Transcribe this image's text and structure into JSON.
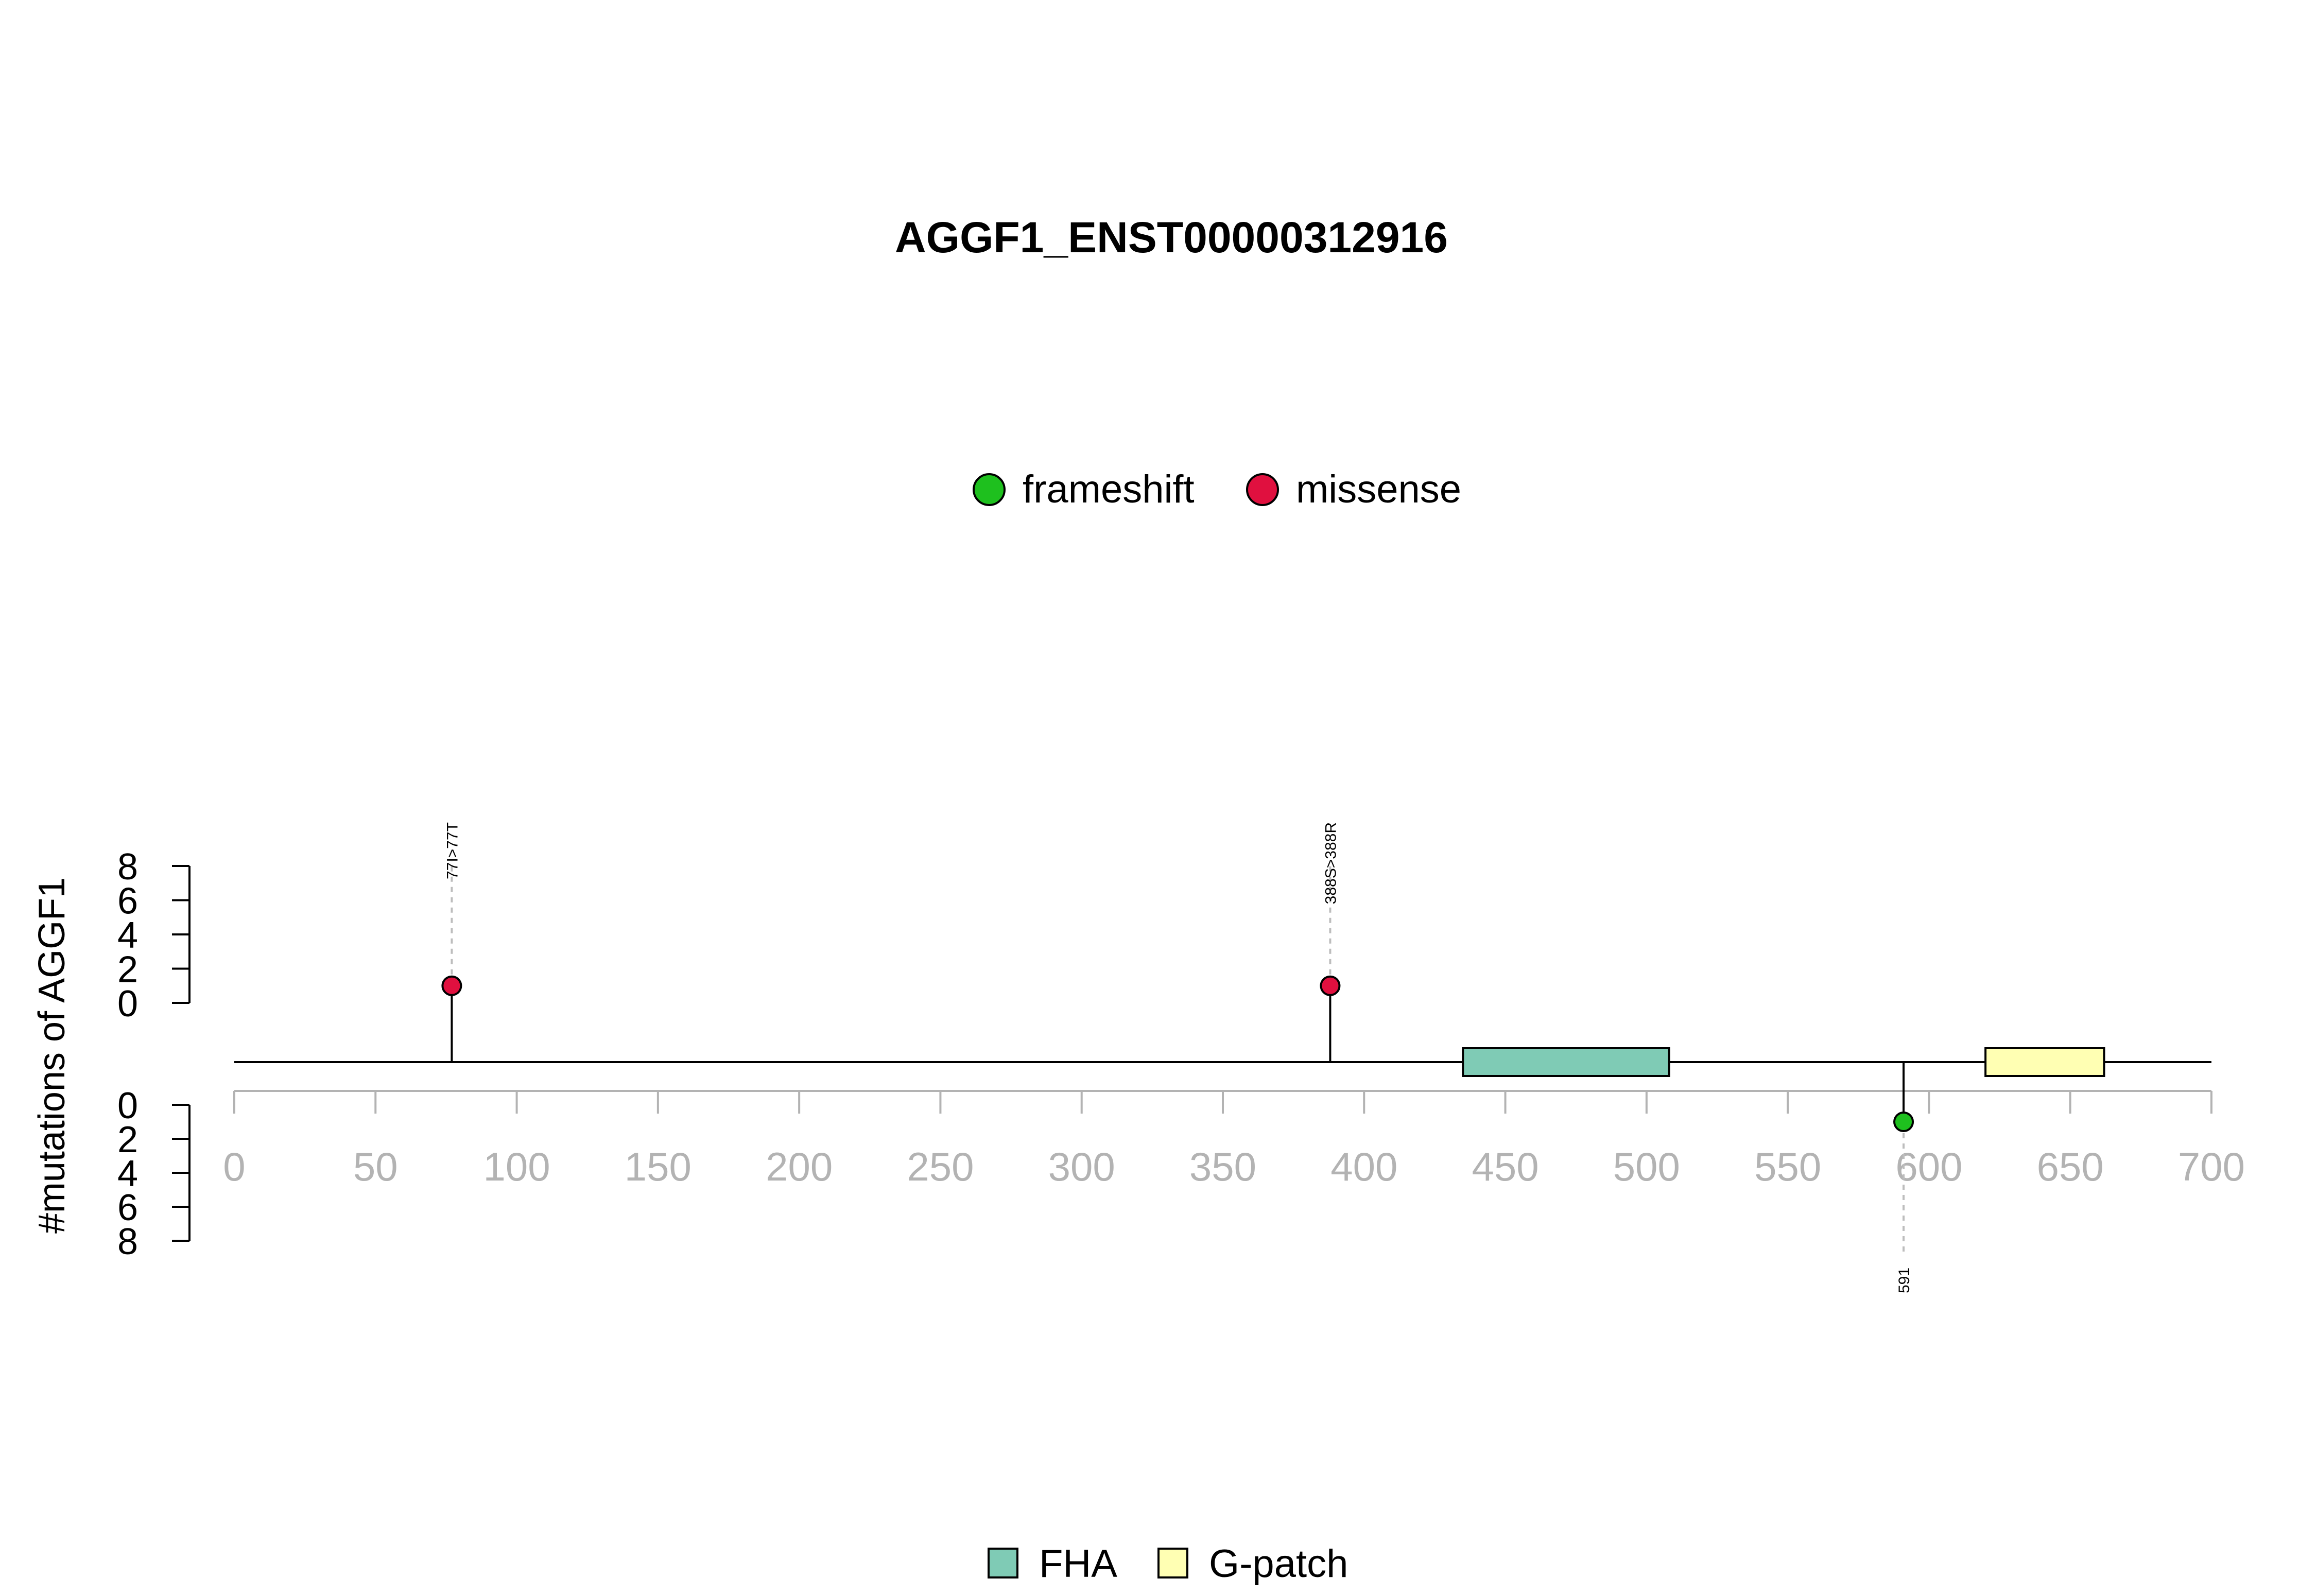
{
  "chart_data": {
    "type": "lollipop",
    "title": "AGGF1_ENST00000312916",
    "ylabel": "#mutations of AGGF1",
    "xlim": [
      0,
      700
    ],
    "x_ticks": [
      0,
      50,
      100,
      150,
      200,
      250,
      300,
      350,
      400,
      450,
      500,
      550,
      600,
      650,
      700
    ],
    "x_tick_labels": [
      "0",
      "50",
      "100",
      "150",
      "200",
      "250",
      "300",
      "350",
      "400",
      "450",
      "500",
      "550",
      "600",
      "650",
      "700"
    ],
    "ylim": [
      0,
      8
    ],
    "y_ticks": [
      0,
      2,
      4,
      6,
      8
    ],
    "y_tick_labels": [
      "0",
      "2",
      "4",
      "6",
      "8"
    ],
    "mutation_legend": [
      {
        "name": "frameshift",
        "color": "#1ec01e"
      },
      {
        "name": "missense",
        "color": "#e0103f"
      }
    ],
    "mutations": [
      {
        "position": 77,
        "label": "77I>77T",
        "type": "missense",
        "count": 1,
        "side": "top"
      },
      {
        "position": 388,
        "label": "388S>388R",
        "type": "missense",
        "count": 1,
        "side": "top"
      },
      {
        "position": 591,
        "label": "591",
        "type": "frameshift",
        "count": 1,
        "side": "bottom"
      }
    ],
    "domain_legend": [
      {
        "name": "FHA",
        "color": "#7fcbb5"
      },
      {
        "name": "G-patch",
        "color": "#ffffb3"
      }
    ],
    "domains": [
      {
        "name": "FHA",
        "start": 435,
        "end": 508,
        "color": "#7fcbb5"
      },
      {
        "name": "G-patch",
        "start": 620,
        "end": 662,
        "color": "#ffffb3"
      }
    ]
  }
}
